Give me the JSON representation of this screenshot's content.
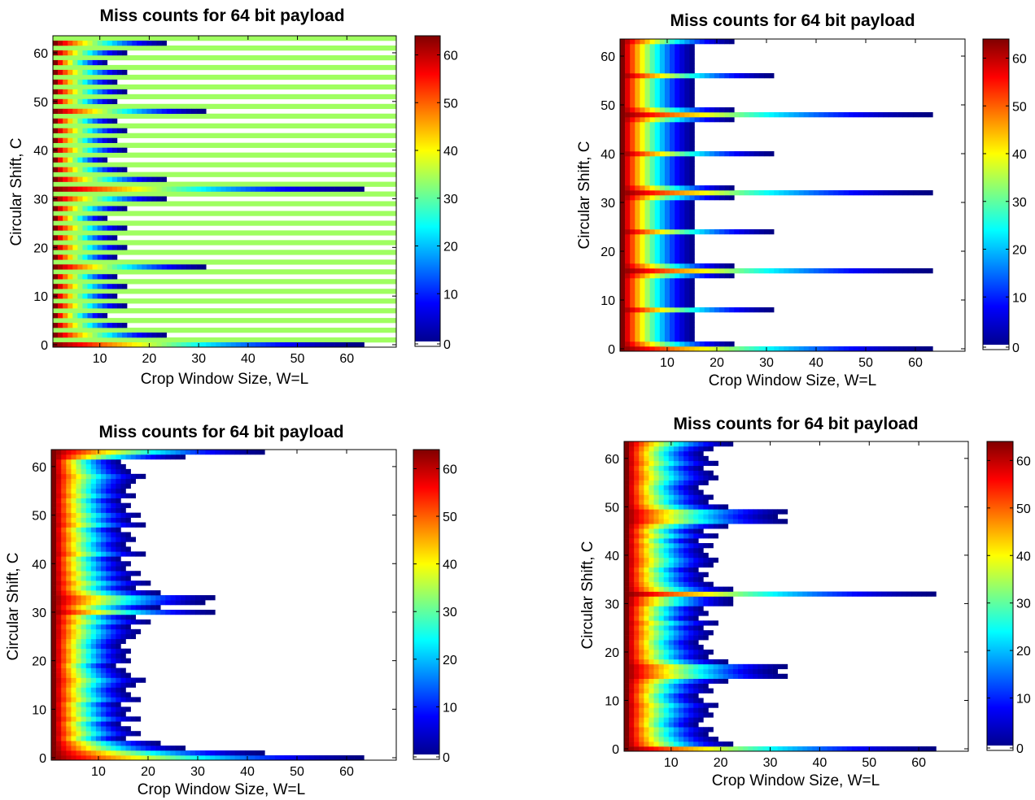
{
  "chart_data": [
    {
      "type": "heatmap",
      "title": "Miss counts for 64 bit payload",
      "xlabel": "Crop Window Size, W=L",
      "ylabel": "Circular Shift, C",
      "xlim": [
        0.5,
        70
      ],
      "ylim": [
        -0.5,
        63.5
      ],
      "xticks": [
        10,
        20,
        30,
        40,
        50,
        60
      ],
      "yticks": [
        0,
        10,
        20,
        30,
        40,
        50,
        60
      ],
      "colorbar": {
        "colormap": "jet",
        "range": [
          0,
          64
        ],
        "ticks": [
          0,
          10,
          20,
          30,
          40,
          50,
          60
        ]
      },
      "background": "striped",
      "odd_row_value": 34,
      "rows": [
        {
          "c": 0,
          "w": 63
        },
        {
          "c": 2,
          "w": 23
        },
        {
          "c": 4,
          "w": 15
        },
        {
          "c": 6,
          "w": 11
        },
        {
          "c": 8,
          "w": 15
        },
        {
          "c": 10,
          "w": 13
        },
        {
          "c": 12,
          "w": 15
        },
        {
          "c": 14,
          "w": 13
        },
        {
          "c": 16,
          "w": 31
        },
        {
          "c": 18,
          "w": 13
        },
        {
          "c": 20,
          "w": 15
        },
        {
          "c": 22,
          "w": 13
        },
        {
          "c": 24,
          "w": 15
        },
        {
          "c": 26,
          "w": 11
        },
        {
          "c": 28,
          "w": 15
        },
        {
          "c": 30,
          "w": 23
        },
        {
          "c": 32,
          "w": 63
        },
        {
          "c": 34,
          "w": 23
        },
        {
          "c": 36,
          "w": 15
        },
        {
          "c": 38,
          "w": 11
        },
        {
          "c": 40,
          "w": 15
        },
        {
          "c": 42,
          "w": 13
        },
        {
          "c": 44,
          "w": 15
        },
        {
          "c": 46,
          "w": 13
        },
        {
          "c": 48,
          "w": 31
        },
        {
          "c": 50,
          "w": 13
        },
        {
          "c": 52,
          "w": 15
        },
        {
          "c": 54,
          "w": 13
        },
        {
          "c": 56,
          "w": 15
        },
        {
          "c": 58,
          "w": 11
        },
        {
          "c": 60,
          "w": 15
        },
        {
          "c": 62,
          "w": 23
        }
      ]
    },
    {
      "type": "heatmap",
      "title": "Miss counts for 64 bit payload",
      "xlabel": "Crop Window Size, W=L",
      "ylabel": "Circular Shift, C",
      "xlim": [
        0.5,
        70
      ],
      "ylim": [
        -0.5,
        63.5
      ],
      "xticks": [
        10,
        20,
        30,
        40,
        50,
        60
      ],
      "yticks": [
        0,
        10,
        20,
        30,
        40,
        50,
        60
      ],
      "colorbar": {
        "colormap": "jet",
        "range": [
          0,
          64
        ],
        "ticks": [
          0,
          10,
          20,
          30,
          40,
          50,
          60
        ]
      },
      "background": "white",
      "default_w": 15,
      "rows": [
        {
          "c": 0,
          "w": 63
        },
        {
          "c": 1,
          "w": 23
        },
        {
          "c": 4,
          "w": 15
        },
        {
          "c": 8,
          "w": 31
        },
        {
          "c": 12,
          "w": 15
        },
        {
          "c": 15,
          "w": 23
        },
        {
          "c": 16,
          "w": 63
        },
        {
          "c": 17,
          "w": 23
        },
        {
          "c": 20,
          "w": 15
        },
        {
          "c": 24,
          "w": 31
        },
        {
          "c": 28,
          "w": 15
        },
        {
          "c": 31,
          "w": 23
        },
        {
          "c": 32,
          "w": 63
        },
        {
          "c": 33,
          "w": 23
        },
        {
          "c": 36,
          "w": 15
        },
        {
          "c": 40,
          "w": 31
        },
        {
          "c": 44,
          "w": 15
        },
        {
          "c": 47,
          "w": 23
        },
        {
          "c": 48,
          "w": 63
        },
        {
          "c": 49,
          "w": 23
        },
        {
          "c": 52,
          "w": 15
        },
        {
          "c": 56,
          "w": 31
        },
        {
          "c": 60,
          "w": 15
        },
        {
          "c": 63,
          "w": 23
        }
      ]
    },
    {
      "type": "heatmap",
      "title": "Miss counts for 64 bit payload",
      "xlabel": "Crop Window Size, W=L",
      "ylabel": "Circular Shift, C",
      "xlim": [
        0.5,
        70
      ],
      "ylim": [
        -0.5,
        63.5
      ],
      "xticks": [
        10,
        20,
        30,
        40,
        50,
        60
      ],
      "yticks": [
        0,
        10,
        20,
        30,
        40,
        50,
        60
      ],
      "colorbar": {
        "colormap": "jet",
        "range": [
          0,
          64
        ],
        "ticks": [
          0,
          10,
          20,
          30,
          40,
          50,
          60
        ]
      },
      "background": "white",
      "row_extents": [
        63,
        43,
        27,
        22,
        15,
        18,
        16,
        14,
        18,
        15,
        16,
        14,
        18,
        16,
        15,
        17,
        19,
        16,
        15,
        13,
        16,
        15,
        16,
        14,
        15,
        17,
        18,
        16,
        20,
        17,
        33,
        22,
        31,
        33,
        22,
        17,
        20,
        16,
        18,
        15,
        16,
        14,
        19,
        16,
        15,
        17,
        16,
        14,
        19,
        16,
        18,
        15,
        16,
        14,
        17,
        15,
        16,
        17,
        19,
        16,
        15,
        14,
        27,
        43
      ]
    },
    {
      "type": "heatmap",
      "title": "Miss counts for 64 bit payload",
      "xlabel": "Crop Window Size, W=L",
      "ylabel": "Circular Shift, C",
      "xlim": [
        0.5,
        70
      ],
      "ylim": [
        -0.5,
        63.5
      ],
      "xticks": [
        10,
        20,
        30,
        40,
        50,
        60
      ],
      "yticks": [
        0,
        10,
        20,
        30,
        40,
        50,
        60
      ],
      "colorbar": {
        "colormap": "jet",
        "range": [
          0,
          64
        ],
        "ticks": [
          0,
          10,
          20,
          30,
          40,
          50,
          60
        ]
      },
      "background": "white",
      "row_extents": [
        63,
        22,
        19,
        17,
        18,
        15,
        16,
        18,
        17,
        19,
        16,
        15,
        18,
        17,
        21,
        33,
        31,
        33,
        21,
        17,
        18,
        16,
        15,
        17,
        18,
        16,
        19,
        15,
        17,
        16,
        22,
        22,
        63,
        22,
        18,
        16,
        17,
        15,
        18,
        19,
        17,
        16,
        18,
        15,
        19,
        16,
        21,
        33,
        31,
        33,
        21,
        17,
        18,
        16,
        15,
        17,
        19,
        18,
        16,
        19,
        17,
        16,
        18,
        22
      ]
    }
  ]
}
